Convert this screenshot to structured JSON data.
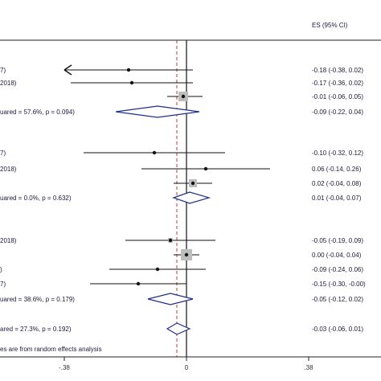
{
  "chart_data": {
    "type": "forest",
    "header_es": "ES (95% CI)",
    "footnote": "es are from random effects analysis",
    "xlim": [
      -0.38,
      0.38
    ],
    "null_line": 0,
    "overall_line": -0.03,
    "x_ticks": [
      "-.38",
      "0",
      ".38"
    ],
    "rows": [
      {
        "label": "7)",
        "kind": "study",
        "es": -0.18,
        "lo": -0.38,
        "hi": 0.02,
        "arrow_left": true,
        "weight": 0,
        "es_text": "-0.18 (-0.38, 0.02)"
      },
      {
        "label": "2018)",
        "kind": "study",
        "es": -0.17,
        "lo": -0.36,
        "hi": 0.02,
        "weight": 0,
        "es_text": "-0.17 (-0.36, 0.02)"
      },
      {
        "label": "",
        "kind": "study",
        "es": -0.01,
        "lo": -0.06,
        "hi": 0.05,
        "weight": 12,
        "es_text": "-0.01 (-0.06, 0.05)"
      },
      {
        "label": "uared = 57.6%, p = 0.094)",
        "kind": "subtotal",
        "es": -0.09,
        "lo": -0.22,
        "hi": 0.04,
        "es_text": "-0.09 (-0.22, 0.04)"
      },
      {
        "label": "7)",
        "kind": "study",
        "es": -0.1,
        "lo": -0.32,
        "hi": 0.12,
        "weight": 0,
        "es_text": "-0.10 (-0.32, 0.12)"
      },
      {
        "label": "2018)",
        "kind": "study",
        "es": 0.06,
        "lo": -0.14,
        "hi": 0.26,
        "weight": 0,
        "es_text": "0.06 (-0.14, 0.26)"
      },
      {
        "label": "",
        "kind": "study",
        "es": 0.02,
        "lo": -0.04,
        "hi": 0.08,
        "weight": 10,
        "es_text": "0.02 (-0.04, 0.08)"
      },
      {
        "label": "uared = 0.0%, p = 0.632)",
        "kind": "subtotal",
        "es": 0.01,
        "lo": -0.04,
        "hi": 0.07,
        "es_text": "0.01 (-0.04, 0.07)"
      },
      {
        "label": "2018)",
        "kind": "study",
        "es": -0.05,
        "lo": -0.19,
        "hi": 0.09,
        "weight": 6,
        "es_text": "-0.05 (-0.19, 0.09)"
      },
      {
        "label": "",
        "kind": "study",
        "es": 0.0,
        "lo": -0.04,
        "hi": 0.04,
        "weight": 14,
        "es_text": "0.00 (-0.04, 0.04)"
      },
      {
        "label": ")",
        "kind": "study",
        "es": -0.09,
        "lo": -0.24,
        "hi": 0.06,
        "weight": 0,
        "es_text": "-0.09 (-0.24, 0.06)"
      },
      {
        "label": "7)",
        "kind": "study",
        "es": -0.15,
        "lo": -0.3,
        "hi": -0.0,
        "weight": 0,
        "es_text": "-0.15 (-0.30, -0.00)"
      },
      {
        "label": "uared = 38.6%, p = 0.179)",
        "kind": "subtotal",
        "es": -0.05,
        "lo": -0.12,
        "hi": 0.02,
        "es_text": "-0.05 (-0.12, 0.02)"
      },
      {
        "label": "ared = 27.3%, p = 0.192)",
        "kind": "overall",
        "es": -0.03,
        "lo": -0.06,
        "hi": 0.01,
        "es_text": "-0.03 (-0.06, 0.01)"
      }
    ],
    "colors": {
      "line": "#111111",
      "diamond": "#1f2f8a",
      "null_line": "#111111",
      "overall_line": "#c0392b",
      "weight_box": "#bdbdbd"
    }
  }
}
